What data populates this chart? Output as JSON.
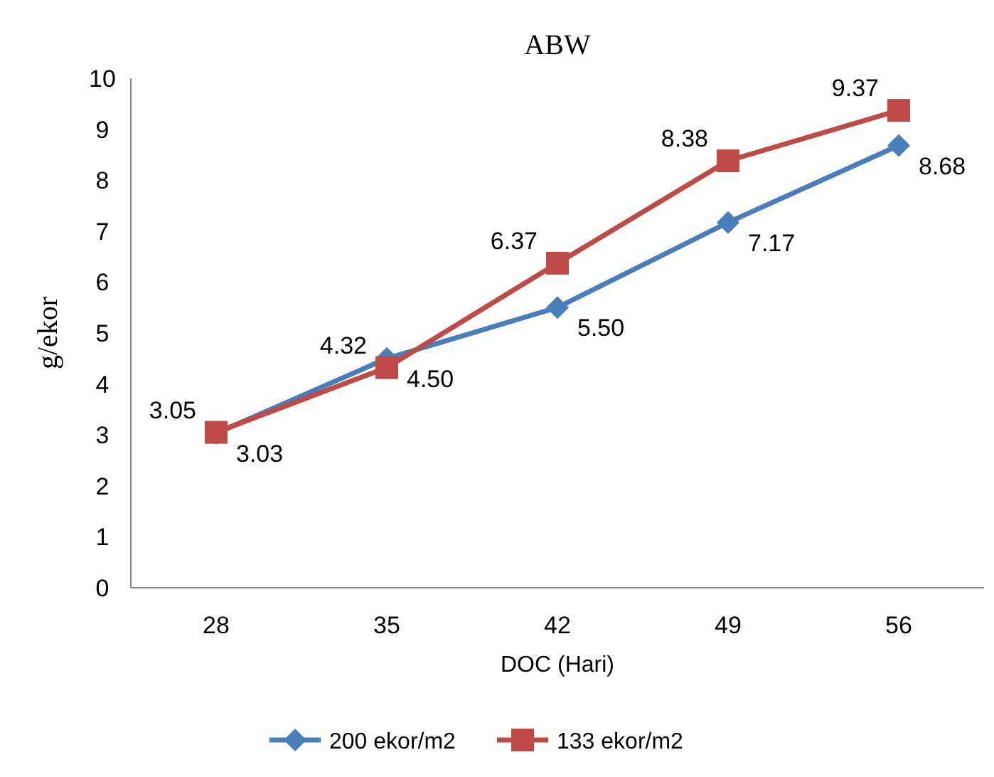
{
  "chart_data": {
    "type": "line",
    "title": "ABW",
    "xlabel": "DOC (Hari)",
    "ylabel": "g/ekor",
    "categories": [
      "28",
      "35",
      "42",
      "49",
      "56"
    ],
    "ylim": [
      0,
      10
    ],
    "yticks": [
      0,
      1,
      2,
      3,
      4,
      5,
      6,
      7,
      8,
      9,
      10
    ],
    "grid": false,
    "legend": "bottom",
    "series": [
      {
        "name": "200 ekor/m2",
        "color": "#4a7ebb",
        "marker": "diamond",
        "values": [
          3.03,
          4.5,
          5.5,
          7.17,
          8.68
        ],
        "value_labels": [
          "3.03",
          "4.50",
          "5.50",
          "7.17",
          "8.68"
        ]
      },
      {
        "name": "133 ekor/m2",
        "color": "#be4b48",
        "marker": "square",
        "values": [
          3.05,
          4.32,
          6.37,
          8.38,
          9.37
        ],
        "value_labels": [
          "3.05",
          "4.32",
          "6.37",
          "8.38",
          "9.37"
        ]
      }
    ]
  }
}
